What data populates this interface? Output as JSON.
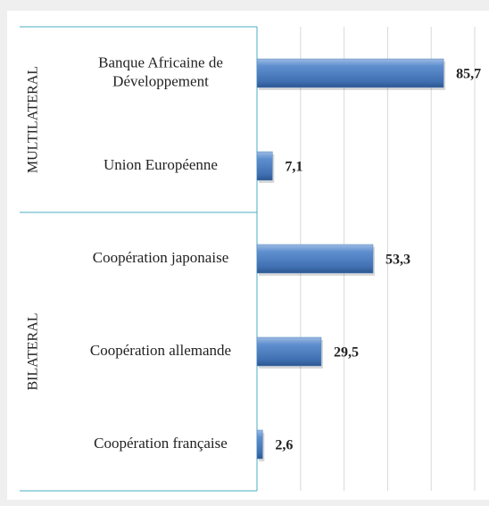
{
  "chart_data": {
    "type": "bar",
    "orientation": "horizontal",
    "color": "#4f81bd",
    "xlim": [
      0,
      100
    ],
    "xticks": [
      0,
      20,
      40,
      60,
      80,
      100
    ],
    "grid": true,
    "groups": [
      {
        "name": "MULTILATERAL",
        "categories": [
          "Banque Africaine de Développement",
          "Union Européenne"
        ],
        "values": [
          85.7,
          7.1
        ],
        "value_labels": [
          "85,7",
          "7,1"
        ]
      },
      {
        "name": "BILATERAL",
        "categories": [
          "Coopération japonaise",
          "Coopération allemande",
          "Coopération française"
        ],
        "values": [
          53.3,
          29.5,
          2.6
        ],
        "value_labels": [
          "53,3",
          "29,5",
          "2,6"
        ]
      }
    ]
  }
}
